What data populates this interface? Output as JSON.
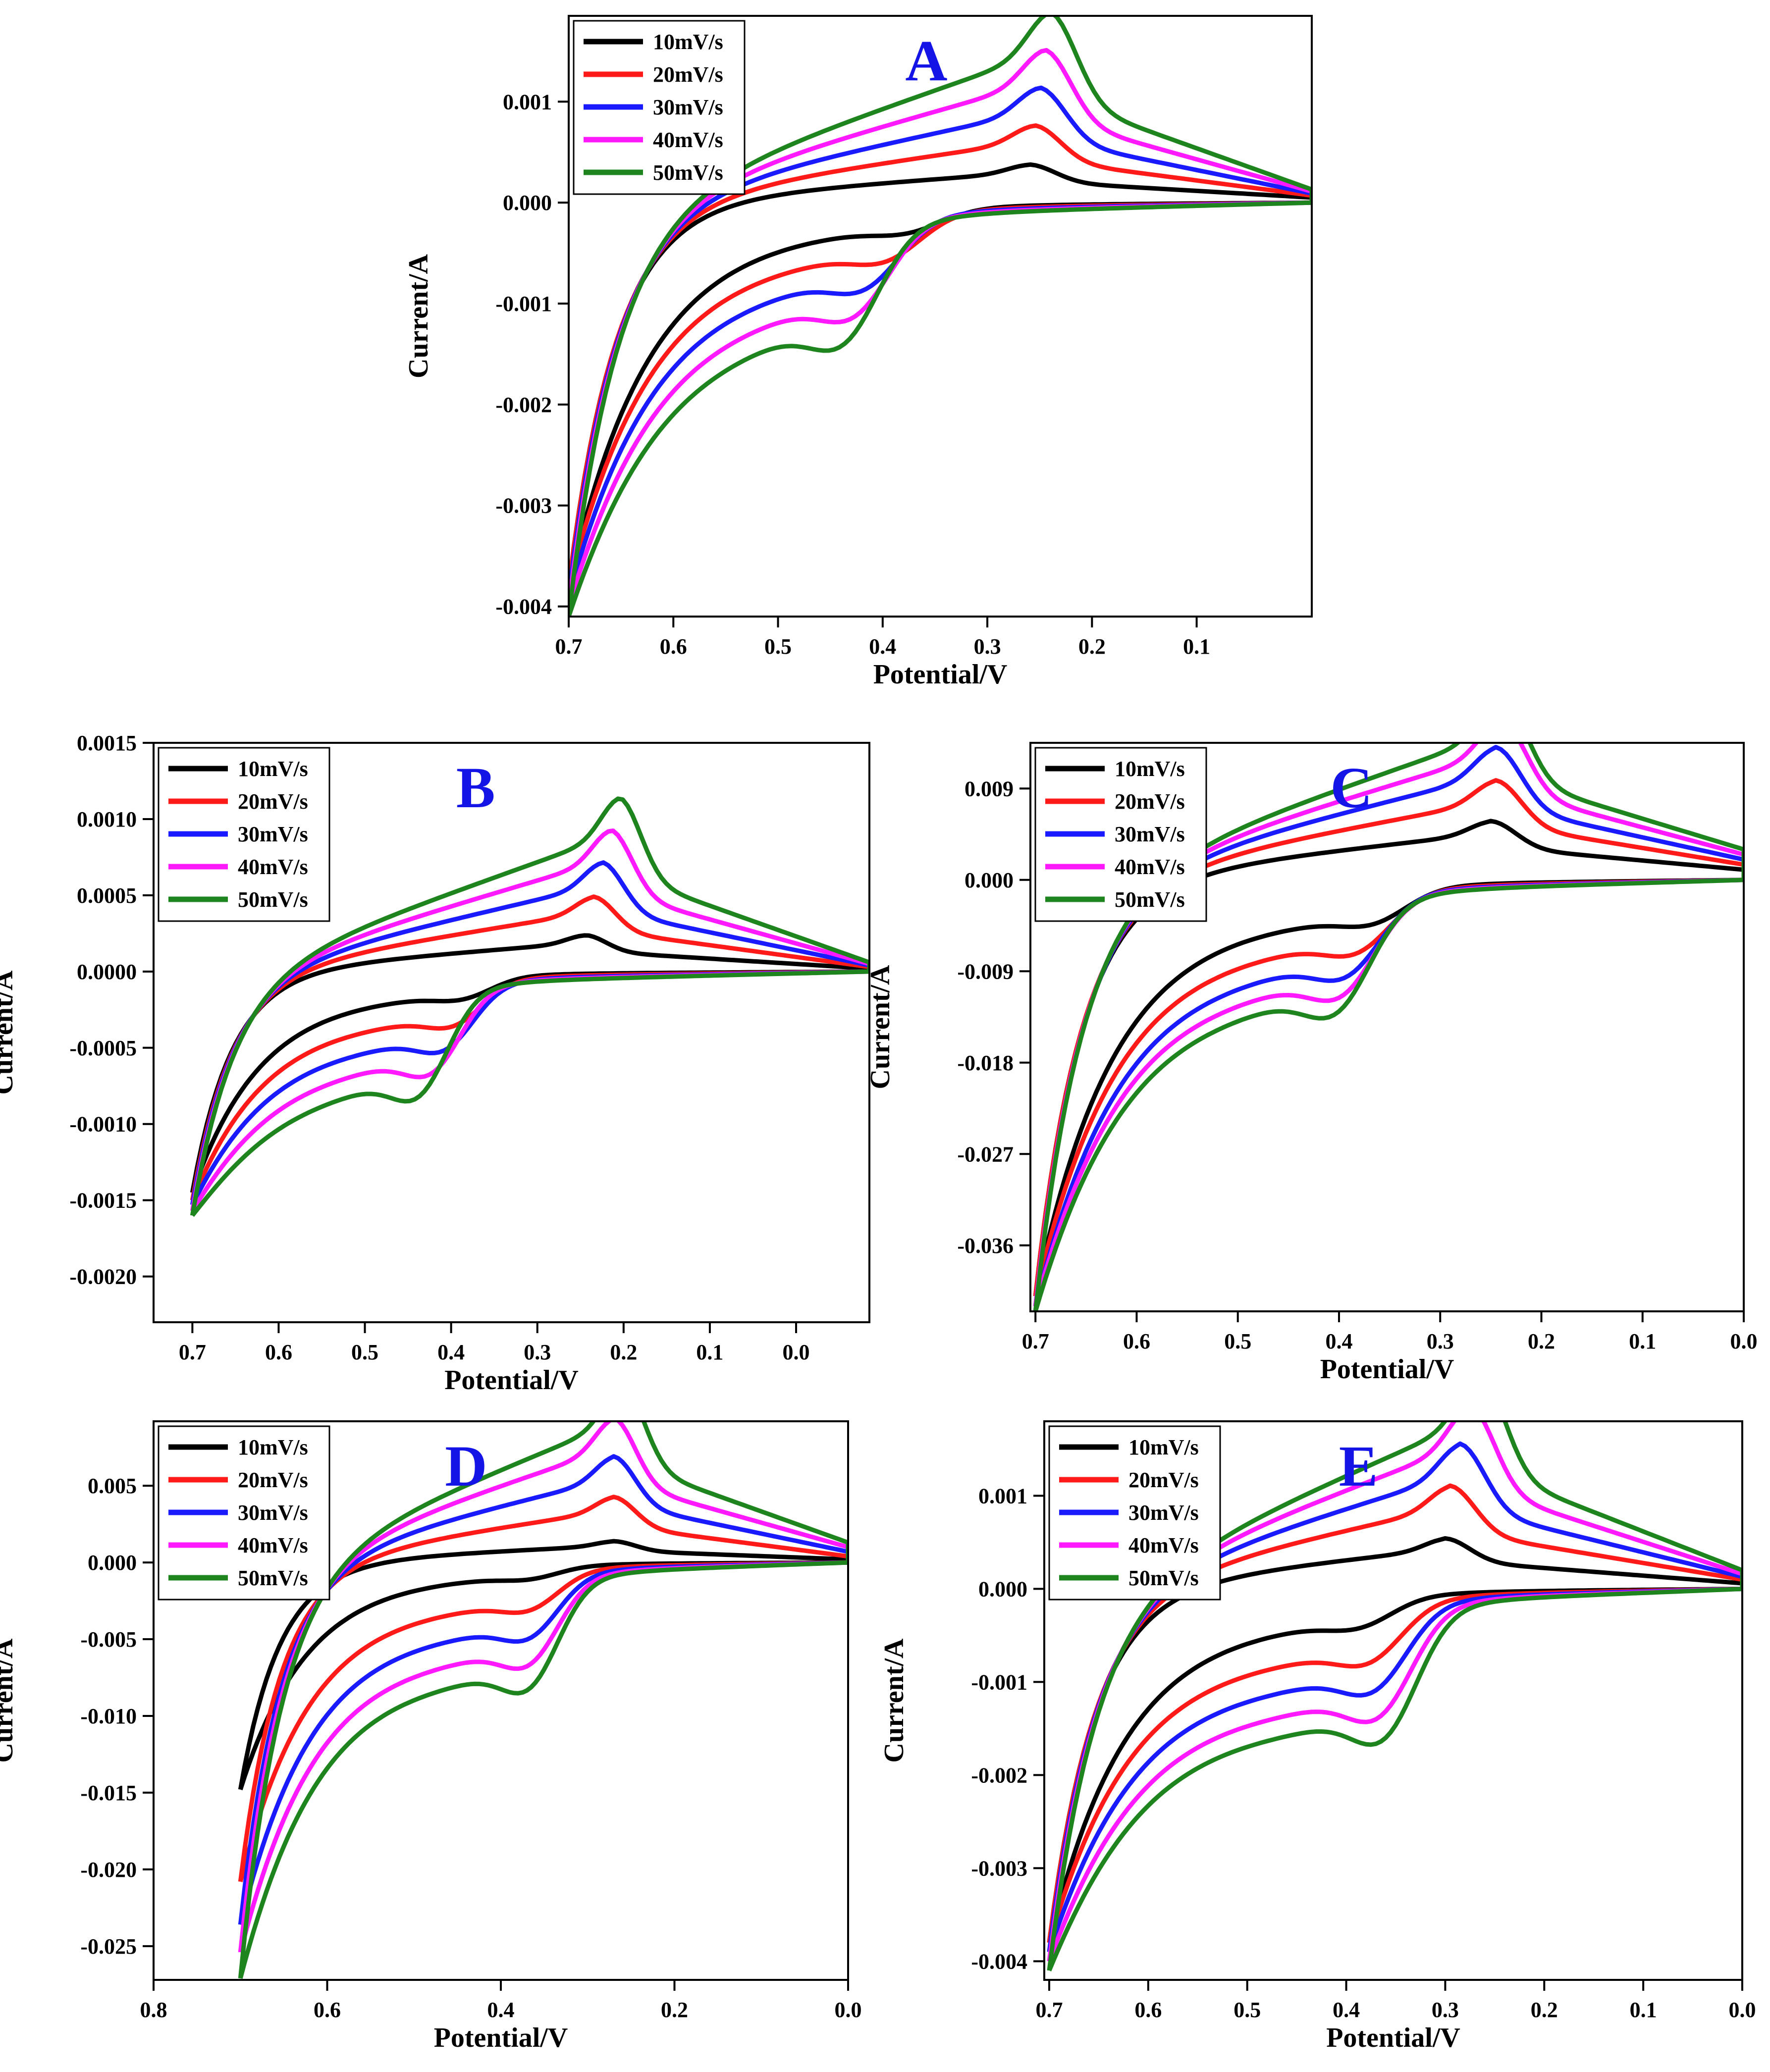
{
  "figure": {
    "legend_title_color": "#000000",
    "panel_letter_color": "#1414e6"
  },
  "chart_data": [
    {
      "type": "line",
      "panel": "A",
      "xlabel": "Potential/V",
      "ylabel": "Current/A",
      "xlim": [
        0.7,
        -0.01
      ],
      "ylim": [
        -0.0041,
        0.00185
      ],
      "xticks": [
        0.7,
        0.6,
        0.5,
        0.4,
        0.3,
        0.2,
        0.1
      ],
      "xtick_labels": [
        "0.7",
        "0.6",
        "0.5",
        "0.4",
        "0.3",
        "0.2",
        "0.1"
      ],
      "yticks": [
        0.001,
        0.0,
        -0.001,
        -0.002,
        -0.003,
        -0.004
      ],
      "ytick_labels": [
        "0.001",
        "0.000",
        "-0.001",
        "-0.002",
        "-0.003",
        "-0.004"
      ],
      "legend_position": "top-left",
      "series": [
        {
          "name": "10mV/s",
          "color": "#000000",
          "scale": 0.0003,
          "ec": 0.37,
          "ea": 0.26,
          "e_min": -0.01,
          "i_start": -0.0038,
          "i_end": 5e-05
        },
        {
          "name": "20mV/s",
          "color": "#ff1a1a",
          "scale": 0.00061,
          "ec": 0.39,
          "ea": 0.255,
          "e_min": -0.01,
          "i_start": -0.0038,
          "i_end": 7e-05
        },
        {
          "name": "30mV/s",
          "color": "#1a1aff",
          "scale": 0.00091,
          "ec": 0.41,
          "ea": 0.25,
          "e_min": -0.01,
          "i_start": -0.0039,
          "i_end": 9e-05
        },
        {
          "name": "40mV/s",
          "color": "#ff19ff",
          "scale": 0.00121,
          "ec": 0.42,
          "ea": 0.245,
          "e_min": -0.01,
          "i_start": -0.004,
          "i_end": 0.00011
        },
        {
          "name": "50mV/s",
          "color": "#1e841e",
          "scale": 0.00151,
          "ec": 0.43,
          "ea": 0.24,
          "e_min": -0.01,
          "i_start": -0.0041,
          "i_end": 0.00013
        }
      ]
    },
    {
      "type": "line",
      "panel": "B",
      "xlabel": "Potential/V",
      "ylabel": "Current/A",
      "xlim": [
        0.745,
        -0.085
      ],
      "ylim": [
        -0.0023,
        0.0015
      ],
      "xticks": [
        0.7,
        0.6,
        0.5,
        0.4,
        0.3,
        0.2,
        0.1,
        0.0
      ],
      "xtick_labels": [
        "0.7",
        "0.6",
        "0.5",
        "0.4",
        "0.3",
        "0.2",
        "0.1",
        "0.0"
      ],
      "yticks": [
        0.0015,
        0.001,
        0.0005,
        0.0,
        -0.0005,
        -0.001,
        -0.0015,
        -0.002
      ],
      "ytick_labels": [
        "0.0015",
        "0.0010",
        "0.0005",
        "0.0000",
        "-0.0005",
        "-0.0010",
        "-0.0015",
        "-0.0020"
      ],
      "legend_position": "top-left",
      "series": [
        {
          "name": "10mV/s",
          "color": "#000000",
          "scale": 0.00019,
          "ec": 0.38,
          "ea": 0.245,
          "e_min": -0.085,
          "i_start": -0.00145,
          "i_end": 2e-05
        },
        {
          "name": "20mV/s",
          "color": "#ff1a1a",
          "scale": 0.00039,
          "ec": 0.39,
          "ea": 0.235,
          "e_min": -0.085,
          "i_start": -0.0015,
          "i_end": 3e-05
        },
        {
          "name": "30mV/s",
          "color": "#1a1aff",
          "scale": 0.00057,
          "ec": 0.4,
          "ea": 0.225,
          "e_min": -0.085,
          "i_start": -0.00153,
          "i_end": 4e-05
        },
        {
          "name": "40mV/s",
          "color": "#ff19ff",
          "scale": 0.00074,
          "ec": 0.415,
          "ea": 0.215,
          "e_min": -0.085,
          "i_start": -0.00157,
          "i_end": 5e-05
        },
        {
          "name": "50mV/s",
          "color": "#1e841e",
          "scale": 0.00091,
          "ec": 0.43,
          "ea": 0.205,
          "e_min": -0.085,
          "i_start": -0.0016,
          "i_end": 6e-05
        }
      ]
    },
    {
      "type": "line",
      "panel": "C",
      "xlabel": "Potential/V",
      "ylabel": "Current/A",
      "xlim": [
        0.705,
        0.0
      ],
      "ylim": [
        -0.0425,
        0.0135
      ],
      "xticks": [
        0.7,
        0.6,
        0.5,
        0.4,
        0.3,
        0.2,
        0.1,
        0.0
      ],
      "xtick_labels": [
        "0.7",
        "0.6",
        "0.5",
        "0.4",
        "0.3",
        "0.2",
        "0.1",
        "0.0"
      ],
      "yticks": [
        0.009,
        0.0,
        -0.009,
        -0.018,
        -0.027,
        -0.036
      ],
      "ytick_labels": [
        "0.009",
        "0.000",
        "-0.009",
        "-0.018",
        "-0.027",
        "-0.036"
      ],
      "legend_position": "top-left",
      "series": [
        {
          "name": "10mV/s",
          "color": "#000000",
          "scale": 0.0046,
          "ec": 0.36,
          "ea": 0.25,
          "e_min": 0.0,
          "i_start": -0.041,
          "i_end": 0.001
        },
        {
          "name": "20mV/s",
          "color": "#ff1a1a",
          "scale": 0.0078,
          "ec": 0.375,
          "ea": 0.245,
          "e_min": 0.0,
          "i_start": -0.041,
          "i_end": 0.0015
        },
        {
          "name": "30mV/s",
          "color": "#1a1aff",
          "scale": 0.0104,
          "ec": 0.385,
          "ea": 0.245,
          "e_min": 0.0,
          "i_start": -0.042,
          "i_end": 0.002
        },
        {
          "name": "40mV/s",
          "color": "#ff19ff",
          "scale": 0.0126,
          "ec": 0.39,
          "ea": 0.24,
          "e_min": 0.0,
          "i_start": -0.042,
          "i_end": 0.0025
        },
        {
          "name": "50mV/s",
          "color": "#1e841e",
          "scale": 0.0145,
          "ec": 0.395,
          "ea": 0.24,
          "e_min": 0.0,
          "i_start": -0.0425,
          "i_end": 0.003
        }
      ]
    },
    {
      "type": "line",
      "panel": "D",
      "xlabel": "Potential/V",
      "ylabel": "Current/A",
      "xlim": [
        0.8,
        0.0
      ],
      "ylim": [
        -0.0272,
        0.0092
      ],
      "xticks": [
        0.8,
        0.6,
        0.4,
        0.2,
        0.0
      ],
      "xtick_labels": [
        "0.8",
        "0.6",
        "0.4",
        "0.2",
        "0.0"
      ],
      "yticks": [
        0.005,
        0.0,
        -0.005,
        -0.01,
        -0.015,
        -0.02,
        -0.025
      ],
      "ytick_labels": [
        "0.005",
        "0.000",
        "-0.005",
        "-0.010",
        "-0.015",
        "-0.020",
        "-0.025"
      ],
      "legend_position": "top-left",
      "series": [
        {
          "name": "10mV/s",
          "color": "#000000",
          "scale": 0.0011,
          "ec": 0.36,
          "ea": 0.27,
          "e_min": 0.0,
          "i_start": -0.0148,
          "i_end": 0.0002
        },
        {
          "name": "20mV/s",
          "color": "#ff1a1a",
          "scale": 0.0034,
          "ec": 0.36,
          "ea": 0.27,
          "e_min": 0.0,
          "i_start": -0.0208,
          "i_end": 0.0004
        },
        {
          "name": "30mV/s",
          "color": "#1a1aff",
          "scale": 0.0055,
          "ec": 0.36,
          "ea": 0.27,
          "e_min": 0.0,
          "i_start": -0.0236,
          "i_end": 0.0007
        },
        {
          "name": "40mV/s",
          "color": "#ff19ff",
          "scale": 0.0075,
          "ec": 0.36,
          "ea": 0.27,
          "e_min": 0.0,
          "i_start": -0.0254,
          "i_end": 0.001
        },
        {
          "name": "50mV/s",
          "color": "#1e841e",
          "scale": 0.0093,
          "ec": 0.36,
          "ea": 0.26,
          "e_min": 0.0,
          "i_start": -0.0271,
          "i_end": 0.0013
        }
      ]
    },
    {
      "type": "line",
      "panel": "E",
      "xlabel": "Potential/V",
      "ylabel": "Current/A",
      "xlim": [
        0.705,
        0.0
      ],
      "ylim": [
        -0.0042,
        0.0018
      ],
      "xticks": [
        0.7,
        0.6,
        0.5,
        0.4,
        0.3,
        0.2,
        0.1,
        0.0
      ],
      "xtick_labels": [
        "0.7",
        "0.6",
        "0.5",
        "0.4",
        "0.3",
        "0.2",
        "0.1",
        "0.0"
      ],
      "yticks": [
        0.001,
        0.0,
        -0.001,
        -0.002,
        -0.003,
        -0.004
      ],
      "ytick_labels": [
        "0.001",
        "0.000",
        "-0.001",
        "-0.002",
        "-0.003",
        "-0.004"
      ],
      "legend_position": "top-left",
      "series": [
        {
          "name": "10mV/s",
          "color": "#000000",
          "scale": 0.00043,
          "ec": 0.38,
          "ea": 0.3,
          "e_min": 0.0,
          "i_start": -0.0038,
          "i_end": 6e-05
        },
        {
          "name": "20mV/s",
          "color": "#ff1a1a",
          "scale": 0.00088,
          "ec": 0.37,
          "ea": 0.295,
          "e_min": 0.0,
          "i_start": -0.0038,
          "i_end": 0.0001
        },
        {
          "name": "30mV/s",
          "color": "#1a1aff",
          "scale": 0.00124,
          "ec": 0.365,
          "ea": 0.285,
          "e_min": 0.0,
          "i_start": -0.0039,
          "i_end": 0.00013
        },
        {
          "name": "40mV/s",
          "color": "#ff19ff",
          "scale": 0.00157,
          "ec": 0.36,
          "ea": 0.275,
          "e_min": 0.0,
          "i_start": -0.004,
          "i_end": 0.00016
        },
        {
          "name": "50mV/s",
          "color": "#1e841e",
          "scale": 0.00185,
          "ec": 0.355,
          "ea": 0.265,
          "e_min": 0.0,
          "i_start": -0.0041,
          "i_end": 0.0002
        }
      ]
    }
  ]
}
